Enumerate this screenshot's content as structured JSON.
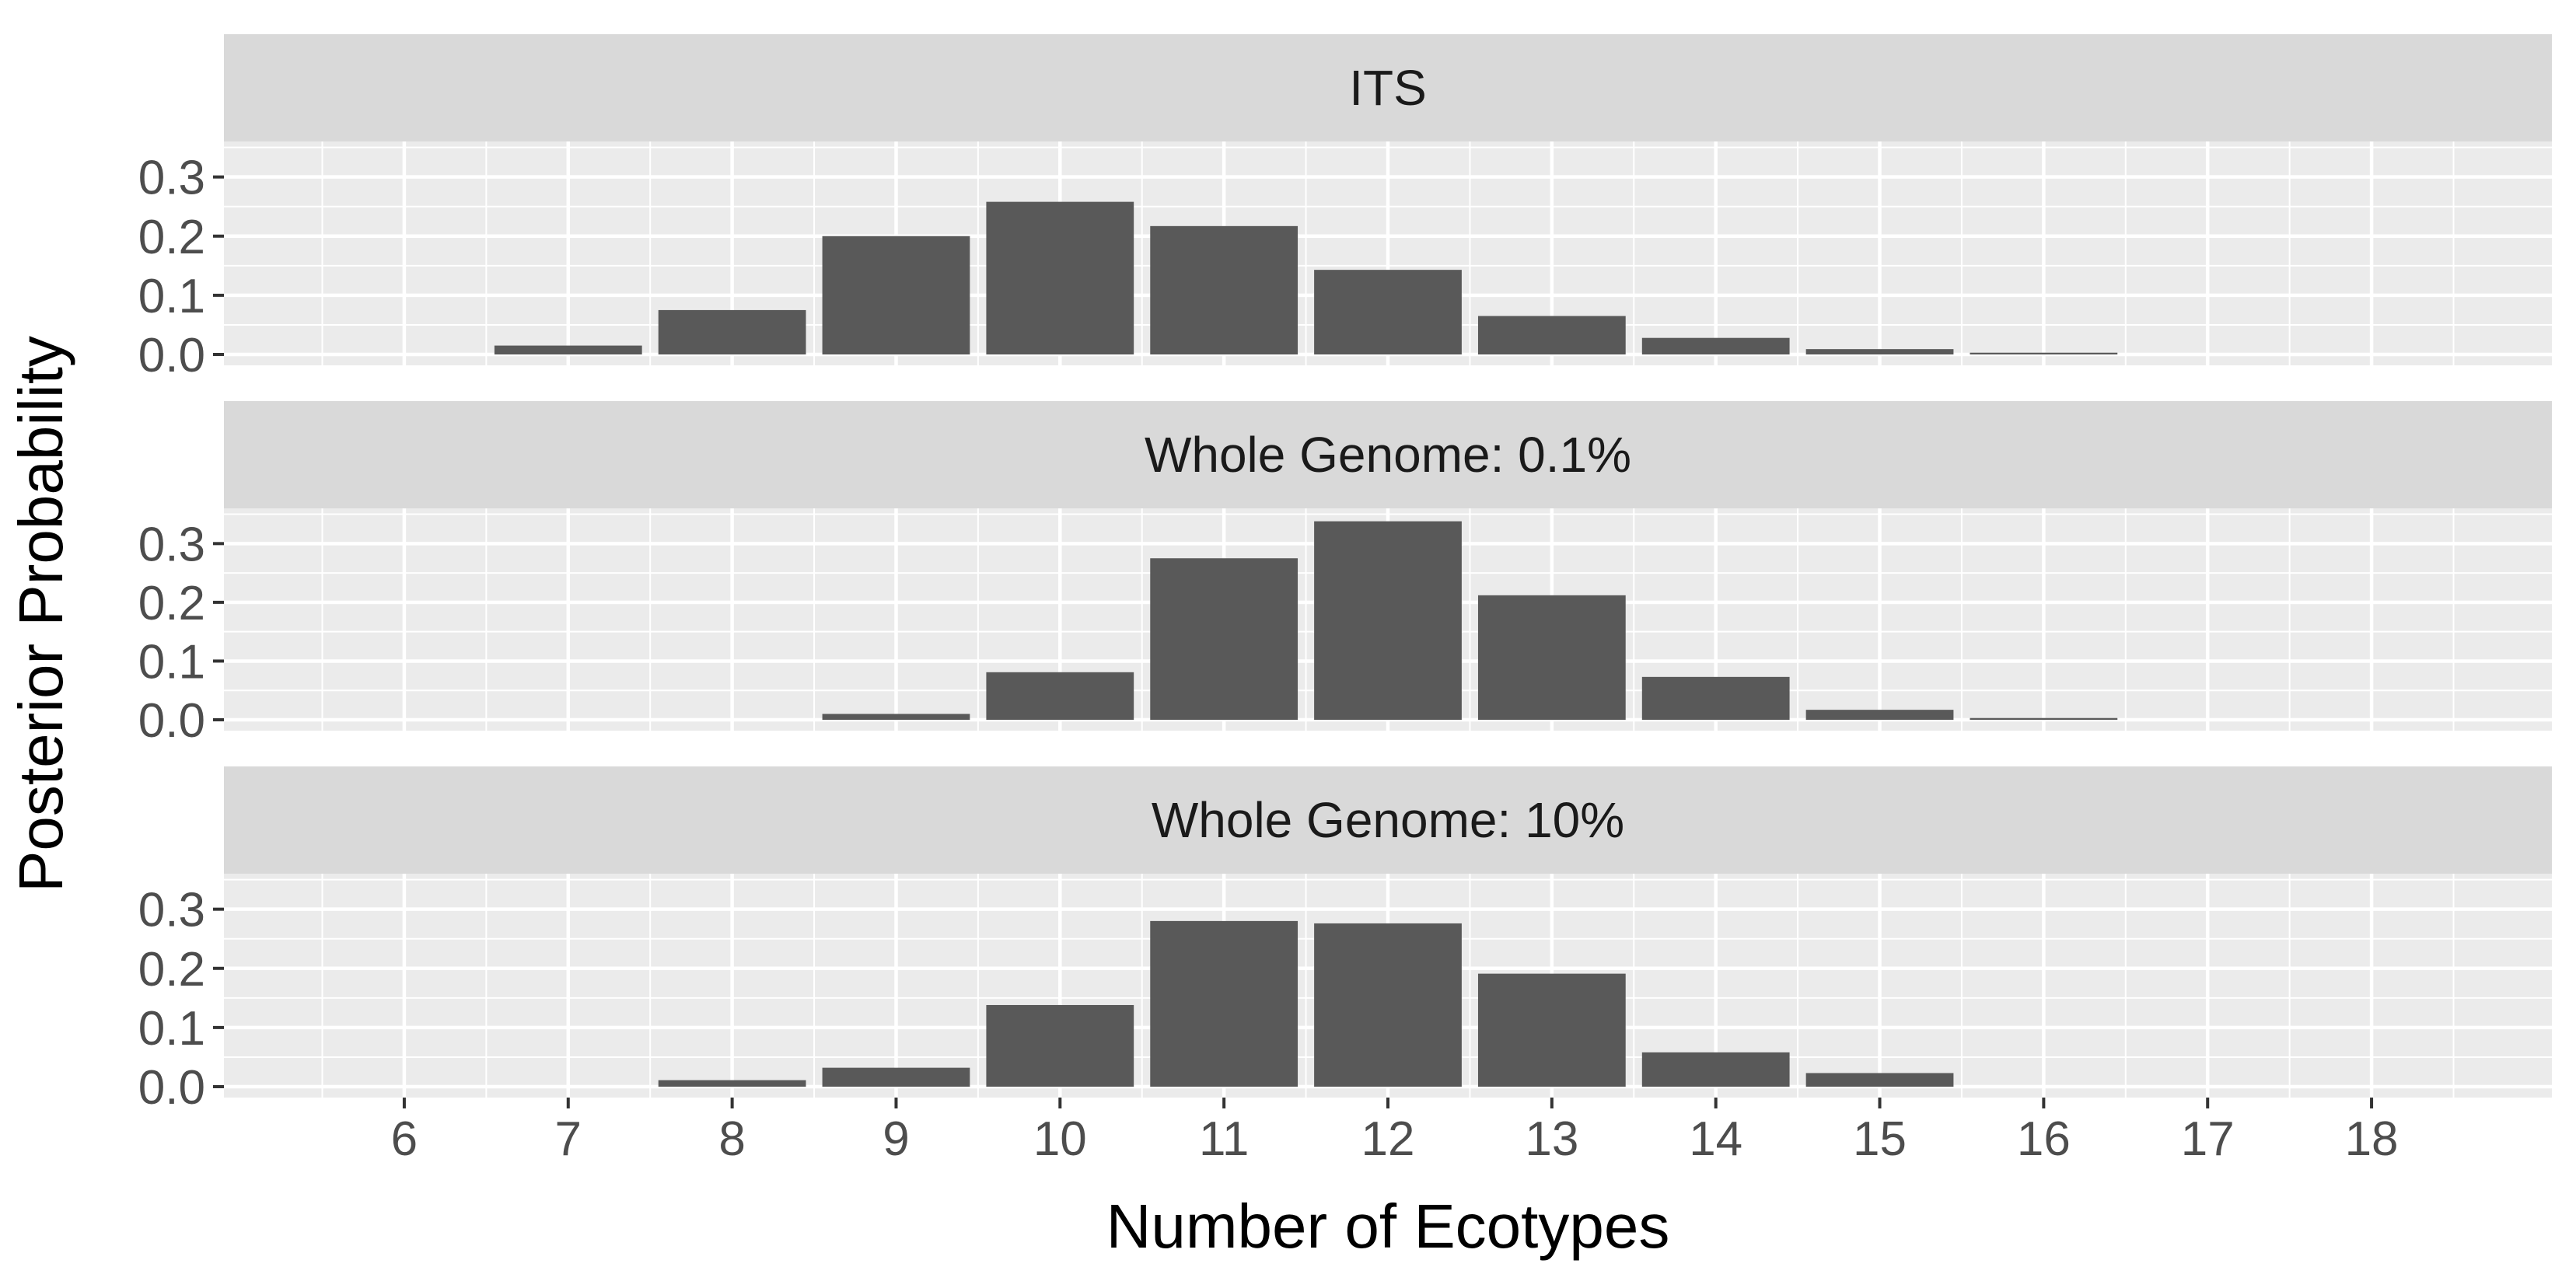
{
  "chart_data": {
    "type": "bar",
    "xlabel": "Number of Ecotypes",
    "ylabel": "Posterior Probability",
    "x_ticks": [
      6,
      7,
      8,
      9,
      10,
      11,
      12,
      13,
      14,
      15,
      16,
      17,
      18
    ],
    "xlim": [
      4.9,
      19.1
    ],
    "ylim": [
      0,
      0.36
    ],
    "y_ticks": [
      "0.0",
      "0.1",
      "0.2",
      "0.3"
    ],
    "grid": true,
    "facets": [
      {
        "strip": "ITS",
        "x": [
          7,
          8,
          9,
          10,
          11,
          12,
          13,
          14,
          15,
          16
        ],
        "values": [
          0.015,
          0.075,
          0.2,
          0.258,
          0.217,
          0.143,
          0.065,
          0.028,
          0.009,
          0.003
        ]
      },
      {
        "strip": "Whole Genome: 0.1%",
        "x": [
          9,
          10,
          11,
          12,
          13,
          14,
          15,
          16
        ],
        "values": [
          0.01,
          0.081,
          0.275,
          0.338,
          0.212,
          0.073,
          0.017,
          0.003
        ]
      },
      {
        "strip": "Whole Genome: 10%",
        "x": [
          8,
          9,
          10,
          11,
          12,
          13,
          14,
          15
        ],
        "values": [
          0.011,
          0.032,
          0.138,
          0.28,
          0.276,
          0.191,
          0.058,
          0.023
        ]
      }
    ]
  }
}
